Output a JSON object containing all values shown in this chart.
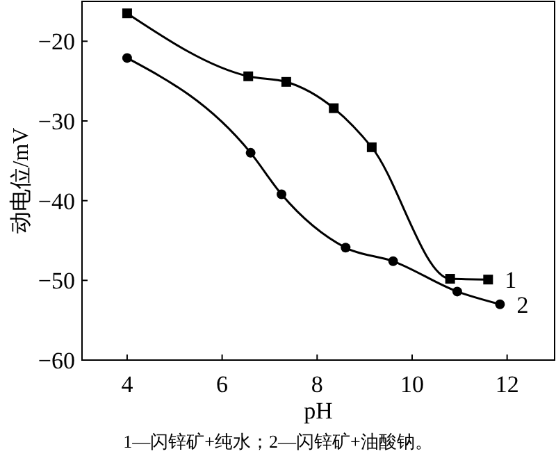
{
  "chart_data": {
    "type": "line",
    "xlabel": "pH",
    "ylabel": "动电位/mV",
    "xlim": [
      3.05,
      13
    ],
    "xticks": [
      4,
      6,
      8,
      10,
      12
    ],
    "ylim": [
      -60,
      -15
    ],
    "yticks": [
      -60,
      -50,
      -40,
      -30,
      -20
    ],
    "grid": false,
    "series": [
      {
        "name": "1",
        "color": "#000000",
        "marker": "square",
        "x": [
          4,
          6.55,
          7.35,
          8.35,
          9.15,
          10.8,
          11.6
        ],
        "values": [
          -16.5,
          -24.4,
          -25.1,
          -28.4,
          -33.3,
          -49.8,
          -49.9
        ]
      },
      {
        "name": "2",
        "color": "#000000",
        "marker": "circle",
        "x": [
          4,
          6.6,
          7.25,
          8.6,
          9.6,
          10.95,
          11.85
        ],
        "values": [
          -22.1,
          -34,
          -39.2,
          -45.9,
          -47.6,
          -51.4,
          -53
        ]
      }
    ],
    "annotations": [
      "1—闪锌矿+纯水；2—闪锌矿+油酸钠。"
    ]
  }
}
